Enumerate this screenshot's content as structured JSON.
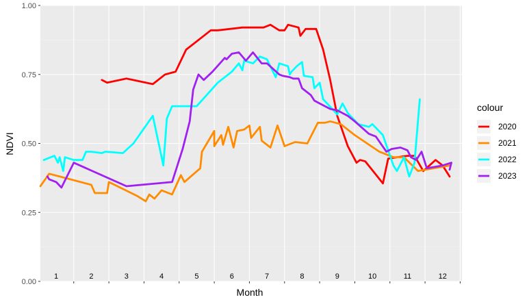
{
  "chart_data": {
    "type": "line",
    "xlabel": "Month",
    "ylabel": "NDVI",
    "xlim": [
      0.55,
      12.55
    ],
    "ylim": [
      0.0,
      1.0
    ],
    "y_ticks": [
      0.0,
      0.25,
      0.5,
      0.75,
      1.0
    ],
    "y_tick_labels": [
      "0.00",
      "0.25",
      "0.50",
      "0.75",
      "1.00"
    ],
    "month_labels": [
      "1",
      "2",
      "3",
      "4",
      "5",
      "6",
      "7",
      "8",
      "9",
      "10",
      "11",
      "12"
    ],
    "grid": true,
    "legend": {
      "title": "colour",
      "position": "right"
    },
    "series": [
      {
        "name": "2020",
        "color": "#ff0000",
        "points": [
          [
            2.3,
            0.73
          ],
          [
            2.45,
            0.72
          ],
          [
            3.0,
            0.735
          ],
          [
            3.75,
            0.715
          ],
          [
            4.1,
            0.75
          ],
          [
            4.4,
            0.76
          ],
          [
            4.7,
            0.84
          ],
          [
            5.4,
            0.91
          ],
          [
            5.6,
            0.91
          ],
          [
            6.3,
            0.92
          ],
          [
            6.9,
            0.92
          ],
          [
            7.1,
            0.93
          ],
          [
            7.35,
            0.91
          ],
          [
            7.5,
            0.91
          ],
          [
            7.6,
            0.93
          ],
          [
            7.9,
            0.92
          ],
          [
            7.95,
            0.89
          ],
          [
            8.1,
            0.915
          ],
          [
            8.4,
            0.915
          ],
          [
            8.6,
            0.84
          ],
          [
            8.8,
            0.73
          ],
          [
            9.0,
            0.6
          ],
          [
            9.3,
            0.49
          ],
          [
            9.55,
            0.43
          ],
          [
            9.65,
            0.44
          ],
          [
            9.8,
            0.435
          ],
          [
            10.3,
            0.355
          ],
          [
            10.45,
            0.445
          ],
          [
            10.7,
            0.45
          ],
          [
            11.0,
            0.455
          ],
          [
            11.2,
            0.455
          ],
          [
            11.45,
            0.4
          ],
          [
            11.8,
            0.44
          ],
          [
            12.0,
            0.42
          ],
          [
            12.2,
            0.38
          ]
        ]
      },
      {
        "name": "2021",
        "color": "#ff8c00",
        "points": [
          [
            0.55,
            0.345
          ],
          [
            0.8,
            0.39
          ],
          [
            2.0,
            0.35
          ],
          [
            2.1,
            0.32
          ],
          [
            2.45,
            0.32
          ],
          [
            2.5,
            0.36
          ],
          [
            3.3,
            0.31
          ],
          [
            3.55,
            0.29
          ],
          [
            3.65,
            0.315
          ],
          [
            3.8,
            0.3
          ],
          [
            4.0,
            0.33
          ],
          [
            4.3,
            0.315
          ],
          [
            4.55,
            0.385
          ],
          [
            4.65,
            0.36
          ],
          [
            5.1,
            0.41
          ],
          [
            5.15,
            0.47
          ],
          [
            5.5,
            0.545
          ],
          [
            5.5,
            0.49
          ],
          [
            5.7,
            0.53
          ],
          [
            5.75,
            0.495
          ],
          [
            5.9,
            0.56
          ],
          [
            6.05,
            0.485
          ],
          [
            6.15,
            0.545
          ],
          [
            6.35,
            0.55
          ],
          [
            6.5,
            0.565
          ],
          [
            6.55,
            0.52
          ],
          [
            6.8,
            0.56
          ],
          [
            6.85,
            0.51
          ],
          [
            7.1,
            0.485
          ],
          [
            7.3,
            0.565
          ],
          [
            7.5,
            0.49
          ],
          [
            7.8,
            0.505
          ],
          [
            8.15,
            0.5
          ],
          [
            8.45,
            0.575
          ],
          [
            8.65,
            0.575
          ],
          [
            8.8,
            0.58
          ],
          [
            9.1,
            0.57
          ],
          [
            9.5,
            0.53
          ],
          [
            10.2,
            0.47
          ],
          [
            10.6,
            0.45
          ],
          [
            10.9,
            0.45
          ],
          [
            11.3,
            0.4
          ],
          [
            12.2,
            0.42
          ]
        ]
      },
      {
        "name": "2022",
        "color": "#00ffff",
        "points": [
          [
            0.65,
            0.44
          ],
          [
            0.95,
            0.455
          ],
          [
            1.05,
            0.43
          ],
          [
            1.1,
            0.45
          ],
          [
            1.2,
            0.4
          ],
          [
            1.25,
            0.45
          ],
          [
            1.5,
            0.44
          ],
          [
            1.75,
            0.44
          ],
          [
            1.85,
            0.47
          ],
          [
            2.0,
            0.47
          ],
          [
            2.3,
            0.465
          ],
          [
            2.4,
            0.47
          ],
          [
            2.9,
            0.465
          ],
          [
            3.2,
            0.5
          ],
          [
            3.75,
            0.6
          ],
          [
            4.05,
            0.42
          ],
          [
            4.15,
            0.59
          ],
          [
            4.3,
            0.635
          ],
          [
            5.0,
            0.635
          ],
          [
            5.6,
            0.72
          ],
          [
            6.0,
            0.76
          ],
          [
            6.2,
            0.79
          ],
          [
            6.3,
            0.765
          ],
          [
            6.35,
            0.8
          ],
          [
            6.6,
            0.79
          ],
          [
            6.8,
            0.815
          ],
          [
            7.0,
            0.805
          ],
          [
            7.25,
            0.74
          ],
          [
            7.35,
            0.79
          ],
          [
            7.6,
            0.78
          ],
          [
            7.65,
            0.75
          ],
          [
            7.7,
            0.76
          ],
          [
            7.85,
            0.78
          ],
          [
            8.0,
            0.795
          ],
          [
            8.05,
            0.745
          ],
          [
            8.3,
            0.74
          ],
          [
            8.35,
            0.7
          ],
          [
            8.5,
            0.72
          ],
          [
            8.6,
            0.66
          ],
          [
            8.75,
            0.64
          ],
          [
            9.0,
            0.605
          ],
          [
            9.15,
            0.645
          ],
          [
            9.3,
            0.61
          ],
          [
            9.6,
            0.57
          ],
          [
            9.9,
            0.56
          ],
          [
            10.0,
            0.57
          ],
          [
            10.3,
            0.53
          ],
          [
            10.6,
            0.42
          ],
          [
            10.7,
            0.4
          ],
          [
            10.9,
            0.45
          ],
          [
            11.05,
            0.38
          ],
          [
            11.2,
            0.43
          ],
          [
            11.35,
            0.66
          ]
        ]
      },
      {
        "name": "2023",
        "color": "#a020f0",
        "points": [
          [
            0.75,
            0.38
          ],
          [
            0.8,
            0.37
          ],
          [
            1.0,
            0.36
          ],
          [
            1.15,
            0.34
          ],
          [
            1.5,
            0.43
          ],
          [
            3.0,
            0.345
          ],
          [
            4.3,
            0.36
          ],
          [
            4.6,
            0.48
          ],
          [
            4.8,
            0.58
          ],
          [
            4.9,
            0.695
          ],
          [
            5.05,
            0.75
          ],
          [
            5.2,
            0.73
          ],
          [
            5.45,
            0.76
          ],
          [
            5.8,
            0.81
          ],
          [
            5.85,
            0.805
          ],
          [
            6.0,
            0.825
          ],
          [
            6.2,
            0.83
          ],
          [
            6.4,
            0.8
          ],
          [
            6.6,
            0.83
          ],
          [
            6.85,
            0.79
          ],
          [
            7.0,
            0.79
          ],
          [
            7.35,
            0.75
          ],
          [
            7.45,
            0.745
          ],
          [
            7.65,
            0.74
          ],
          [
            7.75,
            0.735
          ],
          [
            7.9,
            0.735
          ],
          [
            8.0,
            0.7
          ],
          [
            8.25,
            0.675
          ],
          [
            8.35,
            0.655
          ],
          [
            8.5,
            0.645
          ],
          [
            8.8,
            0.625
          ],
          [
            9.0,
            0.62
          ],
          [
            9.3,
            0.6
          ],
          [
            9.5,
            0.58
          ],
          [
            9.9,
            0.535
          ],
          [
            10.1,
            0.525
          ],
          [
            10.4,
            0.47
          ],
          [
            10.55,
            0.48
          ],
          [
            10.8,
            0.485
          ],
          [
            11.0,
            0.475
          ],
          [
            11.1,
            0.45
          ],
          [
            11.25,
            0.44
          ],
          [
            11.4,
            0.47
          ],
          [
            11.55,
            0.41
          ],
          [
            12.0,
            0.42
          ],
          [
            12.25,
            0.43
          ],
          [
            12.2,
            0.405
          ]
        ]
      }
    ]
  }
}
